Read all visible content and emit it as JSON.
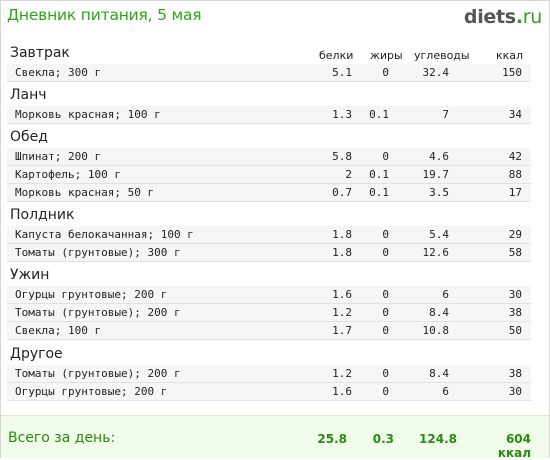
{
  "title": "Дневник питания, 5 мая",
  "logo": {
    "name": "diets",
    "dot": ".",
    "tld": "ru"
  },
  "columns": {
    "protein": "белки",
    "fat": "жиры",
    "carbs": "углеводы",
    "kcal": "ккал"
  },
  "sections": [
    {
      "title": "Завтрак",
      "rows": [
        {
          "name": "Свекла; 300 г",
          "protein": "5.1",
          "fat": "0",
          "carbs": "32.4",
          "kcal": "150"
        }
      ]
    },
    {
      "title": "Ланч",
      "rows": [
        {
          "name": "Морковь красная; 100 г",
          "protein": "1.3",
          "fat": "0.1",
          "carbs": "7",
          "kcal": "34"
        }
      ]
    },
    {
      "title": "Обед",
      "rows": [
        {
          "name": "Шпинат; 200 г",
          "protein": "5.8",
          "fat": "0",
          "carbs": "4.6",
          "kcal": "42"
        },
        {
          "name": "Картофель; 100 г",
          "protein": "2",
          "fat": "0.1",
          "carbs": "19.7",
          "kcal": "88"
        },
        {
          "name": "Морковь красная; 50 г",
          "protein": "0.7",
          "fat": "0.1",
          "carbs": "3.5",
          "kcal": "17"
        }
      ]
    },
    {
      "title": "Полдник",
      "rows": [
        {
          "name": "Капуста белокачанная; 100 г",
          "protein": "1.8",
          "fat": "0",
          "carbs": "5.4",
          "kcal": "29"
        },
        {
          "name": "Томаты (грунтовые); 300 г",
          "protein": "1.8",
          "fat": "0",
          "carbs": "12.6",
          "kcal": "58"
        }
      ]
    },
    {
      "title": "Ужин",
      "rows": [
        {
          "name": "Огурцы грунтовые; 200 г",
          "protein": "1.6",
          "fat": "0",
          "carbs": "6",
          "kcal": "30"
        },
        {
          "name": "Томаты (грунтовые); 200 г",
          "protein": "1.2",
          "fat": "0",
          "carbs": "8.4",
          "kcal": "38"
        },
        {
          "name": "Свекла; 100 г",
          "protein": "1.7",
          "fat": "0",
          "carbs": "10.8",
          "kcal": "50"
        }
      ]
    },
    {
      "title": "Другое",
      "rows": [
        {
          "name": "Томаты (грунтовые); 200 г",
          "protein": "1.2",
          "fat": "0",
          "carbs": "8.4",
          "kcal": "38"
        },
        {
          "name": "Огурцы грунтовые; 200 г",
          "protein": "1.6",
          "fat": "0",
          "carbs": "6",
          "kcal": "30"
        }
      ]
    }
  ],
  "total": {
    "label": "Всего за день:",
    "protein": "25.8",
    "fat": "0.3",
    "carbs": "124.8",
    "kcal": "604 ккал"
  },
  "colors": {
    "title": "#29a814",
    "total_bg": "#f0fbea",
    "total_text": "#2a8a14",
    "row_bg": "#f6f6f6"
  }
}
